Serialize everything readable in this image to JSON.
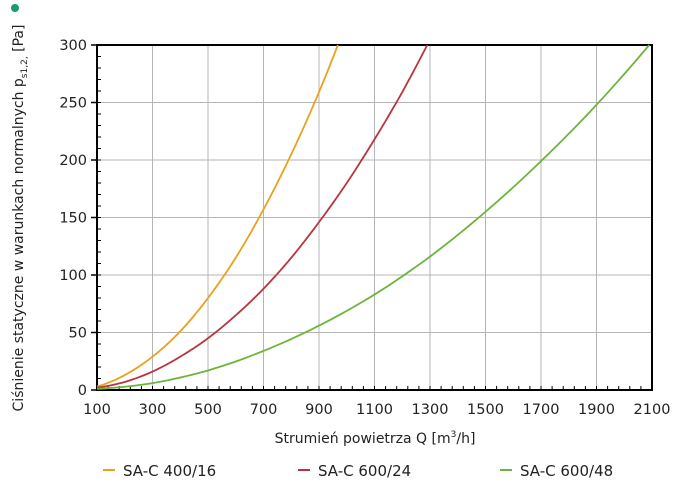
{
  "chart_data": {
    "type": "line",
    "title": "",
    "xlabel": "Strumień powietrza Q [m³/h]",
    "xlabel_parts": {
      "main": "Strumień powietrza Q [m",
      "sup": "3",
      "end": "/h]"
    },
    "ylabel": "Ciśnienie statyczne w warunkach normalnych p s1,2, [Pa]",
    "ylabel_parts": {
      "main": "Ciśnienie statyczne w warunkach normalnych p",
      "sub": "s1,2,",
      "end": " [Pa]"
    },
    "xlim": [
      100,
      2100
    ],
    "ylim": [
      0,
      300
    ],
    "xticks": [
      100,
      300,
      500,
      700,
      900,
      1100,
      1300,
      1500,
      1700,
      1900,
      2100
    ],
    "yticks": [
      0,
      50,
      100,
      150,
      200,
      250,
      300
    ],
    "grid": true,
    "legend_position": "bottom",
    "series": [
      {
        "name": "SA-C 400/16",
        "color": "#e8a31a",
        "x": [
          100,
          200,
          300,
          400,
          500,
          600,
          700,
          800,
          900,
          968
        ],
        "y": [
          3,
          13,
          29,
          51,
          80,
          115,
          157,
          205,
          259,
          300
        ]
      },
      {
        "name": "SA-C 600/24",
        "color": "#b8353f",
        "x": [
          100,
          200,
          300,
          400,
          500,
          600,
          700,
          800,
          900,
          1000,
          1100,
          1200,
          1290
        ],
        "y": [
          2,
          7,
          16,
          29,
          45,
          65,
          88,
          115,
          146,
          180,
          218,
          259,
          300
        ]
      },
      {
        "name": "SA-C 600/48",
        "color": "#6db43c",
        "x": [
          100,
          300,
          500,
          700,
          900,
          1100,
          1300,
          1500,
          1700,
          1900,
          2090
        ],
        "y": [
          1,
          6,
          17,
          34,
          56,
          83,
          116,
          155,
          199,
          248,
          300
        ]
      }
    ]
  },
  "header": {
    "accent": "#1a9a72"
  }
}
